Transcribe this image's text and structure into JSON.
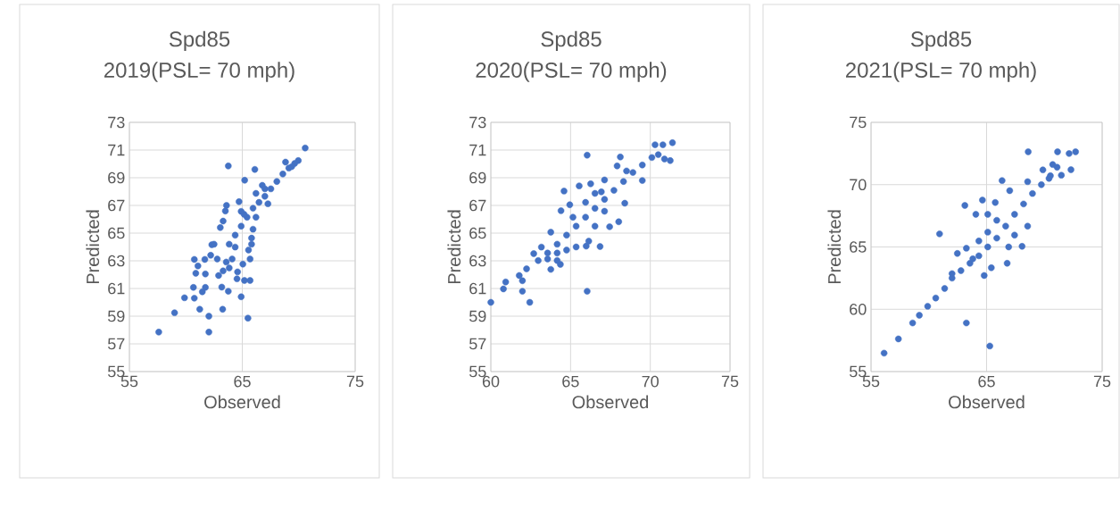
{
  "chart_data": [
    {
      "type": "scatter",
      "title": "Spd85",
      "subtitle": "2019(PSL= 70 mph)",
      "xlabel": "Observed",
      "ylabel": "Predicted",
      "xlim": [
        55,
        75
      ],
      "ylim": [
        55,
        73
      ],
      "xticks": [
        55,
        65,
        75
      ],
      "yticks": [
        55,
        57,
        59,
        61,
        63,
        65,
        67,
        69,
        71,
        73
      ],
      "grid": true,
      "marker": "circle",
      "series": [
        {
          "color": "#4472c4",
          "x": [
            70.57,
            63.76,
            66.11,
            65.21,
            66.77,
            68.83,
            69.96,
            64.71,
            63.6,
            63.5,
            63.3,
            62.3,
            60.75,
            61.68,
            62.2,
            61.07,
            60.88,
            65.69,
            65.05,
            64.58,
            64.53,
            65.19,
            65.69,
            63.18,
            63.76,
            64.9,
            60.75,
            61.23,
            62.04,
            63.26,
            65.5,
            57.6,
            62.04,
            59.0,
            59.88,
            60.67,
            61.73,
            62.78,
            63.84,
            64.37,
            64.9,
            65.42,
            65.95,
            66.48,
            67.0,
            67.53,
            68.06,
            68.59,
            69.12,
            69.64,
            69.38,
            67.27,
            66.21,
            65.95,
            65.82,
            65.82,
            65.55,
            64.1,
            63.84,
            63.3,
            62.9,
            61.73,
            61.46,
            63.05,
            62.5,
            65.16,
            66.21,
            67.0,
            64.9,
            64.37,
            63.58
          ],
          "values": [
            71.15,
            69.85,
            69.6,
            68.82,
            68.45,
            70.13,
            70.24,
            67.27,
            67.0,
            66.6,
            65.87,
            64.16,
            63.1,
            63.1,
            63.4,
            62.63,
            62.1,
            63.13,
            62.76,
            62.2,
            61.7,
            61.58,
            61.58,
            61.1,
            60.8,
            60.4,
            60.3,
            59.5,
            59.0,
            59.5,
            58.86,
            57.85,
            57.85,
            59.25,
            60.33,
            61.08,
            62.05,
            63.13,
            64.2,
            64.85,
            65.5,
            66.15,
            66.8,
            67.22,
            67.66,
            68.2,
            68.73,
            69.27,
            69.7,
            70.03,
            69.8,
            67.12,
            66.15,
            65.28,
            64.64,
            64.2,
            63.78,
            63.13,
            62.48,
            62.27,
            61.94,
            61.08,
            60.76,
            65.4,
            64.2,
            66.36,
            67.87,
            68.2,
            66.57,
            63.99,
            62.91
          ]
        }
      ]
    },
    {
      "type": "scatter",
      "title": "Spd85",
      "subtitle": "2020(PSL= 70 mph)",
      "xlabel": "Observed",
      "ylabel": "Predicted",
      "xlim": [
        60,
        75
      ],
      "ylim": [
        55,
        73
      ],
      "xticks": [
        60,
        65,
        70,
        75
      ],
      "yticks": [
        55,
        57,
        59,
        61,
        63,
        65,
        67,
        69,
        71,
        73
      ],
      "grid": true,
      "marker": "circle",
      "series": [
        {
          "color": "#4472c4",
          "x": [
            60.0,
            60.79,
            60.93,
            61.98,
            62.44,
            61.98,
            61.78,
            66.04,
            66.04,
            64.59,
            70.3,
            70.79,
            71.39,
            71.25,
            69.5,
            68.4,
            68.02,
            67.45,
            66.85,
            65.98,
            66.14,
            64.36,
            63.76,
            62.69,
            62.24,
            63.76,
            64.4,
            64.95,
            65.54,
            66.26,
            67.92,
            68.12,
            62.97,
            63.56,
            64.16,
            64.75,
            65.35,
            65.94,
            66.53,
            67.13,
            67.72,
            68.32,
            68.91,
            69.5,
            70.1,
            70.5,
            70.89,
            64.75,
            65.35,
            66.53,
            67.13,
            65.94,
            65.15,
            64.16,
            67.13,
            68.51,
            66.93,
            63.17,
            63.56,
            64.16,
            66.53
          ],
          "values": [
            60.0,
            60.97,
            61.47,
            60.8,
            60.0,
            61.56,
            61.94,
            60.8,
            70.63,
            68.04,
            71.38,
            71.38,
            71.53,
            70.24,
            68.8,
            67.16,
            65.82,
            65.46,
            64.03,
            64.06,
            64.42,
            62.74,
            62.38,
            63.52,
            62.42,
            65.07,
            66.62,
            67.05,
            68.41,
            68.56,
            69.85,
            70.5,
            63.02,
            63.56,
            64.2,
            64.85,
            65.5,
            66.15,
            66.79,
            67.44,
            68.09,
            68.73,
            69.38,
            69.92,
            70.46,
            70.67,
            70.35,
            63.78,
            64.0,
            65.5,
            66.58,
            67.22,
            66.15,
            63.56,
            68.84,
            69.49,
            67.98,
            63.99,
            63.13,
            63.02,
            67.87
          ]
        }
      ]
    },
    {
      "type": "scatter",
      "title": "Spd85",
      "subtitle": "2021(PSL= 70 mph)",
      "xlabel": "Observed",
      "ylabel": "Predicted",
      "xlim": [
        55,
        75
      ],
      "ylim": [
        55,
        75
      ],
      "xticks": [
        55,
        65,
        75
      ],
      "yticks": [
        55,
        60,
        65,
        70,
        75
      ],
      "grid": true,
      "marker": "circle",
      "series": [
        {
          "color": "#4472c4",
          "x": [
            68.6,
            71.14,
            72.14,
            72.7,
            72.3,
            71.1,
            70.4,
            56.13,
            57.37,
            58.6,
            63.25,
            65.28,
            60.93,
            63.12,
            66.34,
            64.64,
            62.47,
            63.25,
            64.79,
            65.41,
            66.78,
            68.07,
            71.47,
            70.72,
            69.87,
            59.18,
            59.9,
            60.6,
            61.37,
            62.01,
            62.78,
            63.56,
            64.33,
            65.1,
            65.88,
            66.65,
            67.42,
            68.2,
            68.97,
            69.74,
            70.52,
            64.33,
            65.1,
            65.88,
            67.0,
            68.55,
            67.42,
            64.07,
            65.1,
            63.81,
            66.91,
            62.01,
            65.75,
            68.55
          ],
          "values": [
            72.64,
            72.64,
            72.5,
            72.64,
            71.2,
            71.4,
            70.5,
            56.48,
            57.62,
            58.9,
            58.9,
            57.05,
            66.05,
            68.33,
            70.33,
            68.76,
            64.48,
            64.9,
            62.71,
            63.33,
            63.69,
            65.05,
            70.76,
            71.62,
            71.19,
            59.52,
            60.24,
            60.9,
            61.67,
            62.5,
            63.1,
            63.69,
            64.29,
            65.0,
            65.71,
            66.67,
            67.62,
            68.45,
            69.29,
            70.0,
            70.71,
            65.48,
            66.19,
            67.14,
            69.52,
            70.24,
            65.95,
            67.62,
            67.62,
            64.05,
            65.0,
            62.86,
            68.57,
            66.67
          ]
        }
      ]
    }
  ]
}
